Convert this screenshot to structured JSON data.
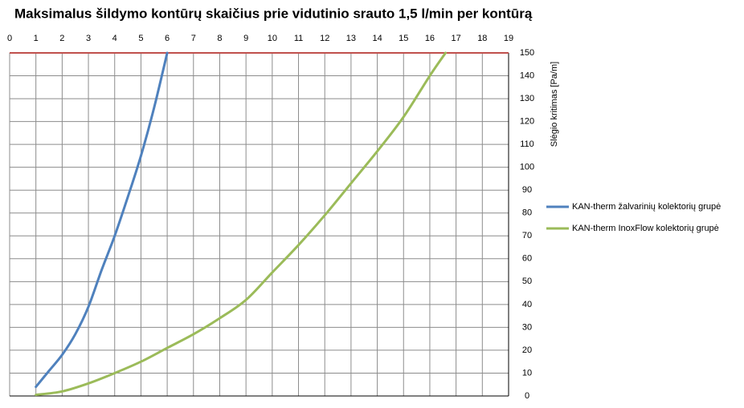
{
  "chart_data": {
    "type": "line",
    "title": "Maksimalus šildymo kontūrų skaičius prie vidutinio srauto  1,5 l/min per kontūrą",
    "y_label": "Slėgio kritimas [Pa/m]",
    "xlim": [
      0,
      19
    ],
    "xticks": [
      0,
      1,
      2,
      3,
      4,
      5,
      6,
      7,
      8,
      9,
      10,
      11,
      12,
      13,
      14,
      15,
      16,
      17,
      18,
      19
    ],
    "ylim": [
      0,
      150
    ],
    "yticks": [
      0,
      10,
      20,
      30,
      40,
      50,
      60,
      70,
      80,
      90,
      100,
      110,
      120,
      130,
      140,
      150
    ],
    "grid": true,
    "reference_line": {
      "y": 150,
      "color": "#c0504d"
    },
    "legend": "right",
    "series": [
      {
        "name": "KAN-therm žalvarinių kolektorių grupė",
        "color": "#4f81bd",
        "x": [
          1,
          1.5,
          2,
          2.5,
          3,
          3.5,
          4,
          4.5,
          5,
          5.5,
          6
        ],
        "values": [
          4,
          11,
          18,
          27,
          39,
          55,
          70,
          87,
          105,
          126,
          150
        ]
      },
      {
        "name": "KAN-therm InoxFlow kolektorių grupė",
        "color": "#9bbb59",
        "x": [
          1,
          2,
          3,
          4,
          5,
          6,
          7,
          8,
          9,
          10,
          11,
          12,
          13,
          14,
          15,
          16,
          16.6
        ],
        "values": [
          0.5,
          2,
          5.5,
          10,
          15,
          21,
          27,
          34,
          42,
          54,
          66,
          79,
          93,
          107,
          122,
          140,
          150
        ]
      }
    ]
  }
}
